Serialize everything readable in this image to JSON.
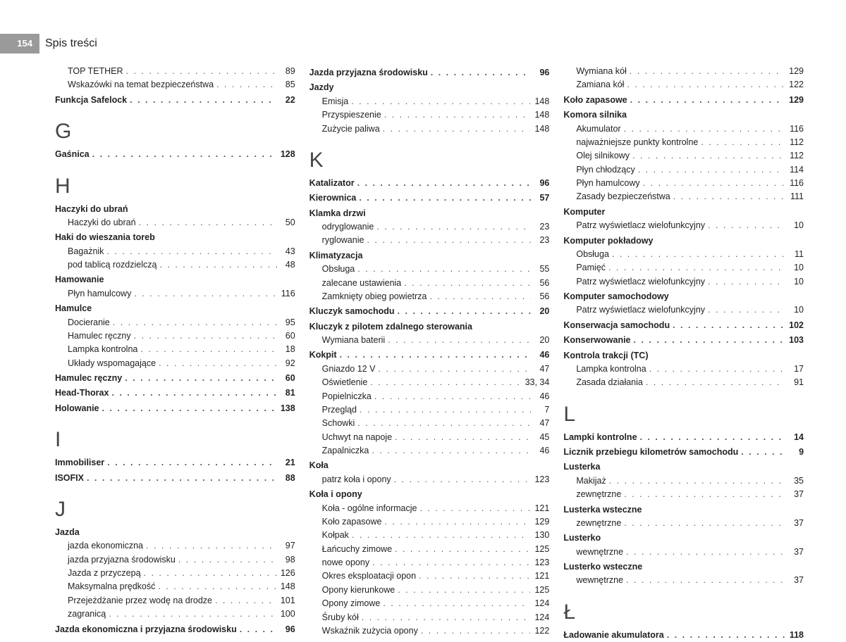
{
  "header": {
    "page_num": "154",
    "title": "Spis treści"
  },
  "col1": [
    {
      "sub": true,
      "label": "TOP TETHER",
      "page": "89"
    },
    {
      "sub": true,
      "label": "Wskazówki na temat bezpieczeństwa",
      "page": "85"
    },
    {
      "bold": true,
      "label": "Funkcja Safelock",
      "page": "22"
    },
    {
      "letter": "G"
    },
    {
      "bold": true,
      "label": "Gaśnica",
      "page": "128"
    },
    {
      "letter": "H"
    },
    {
      "bold": true,
      "nopage": true,
      "label": "Haczyki do ubrań",
      "page": ""
    },
    {
      "sub": true,
      "label": "Haczyki do ubrań",
      "page": "50"
    },
    {
      "bold": true,
      "nopage": true,
      "label": "Haki do wieszania toreb",
      "page": ""
    },
    {
      "sub": true,
      "label": "Bagażnik",
      "page": "43"
    },
    {
      "sub": true,
      "label": "pod tablicą rozdzielczą",
      "page": "48"
    },
    {
      "bold": true,
      "nopage": true,
      "label": "Hamowanie",
      "page": ""
    },
    {
      "sub": true,
      "label": "Płyn hamulcowy",
      "page": "116"
    },
    {
      "bold": true,
      "nopage": true,
      "label": "Hamulce",
      "page": ""
    },
    {
      "sub": true,
      "label": "Docieranie",
      "page": "95"
    },
    {
      "sub": true,
      "label": "Hamulec ręczny",
      "page": "60"
    },
    {
      "sub": true,
      "label": "Lampka kontrolna",
      "page": "18"
    },
    {
      "sub": true,
      "label": "Układy wspomagające",
      "page": "92"
    },
    {
      "bold": true,
      "label": "Hamulec ręczny",
      "page": "60"
    },
    {
      "bold": true,
      "label": "Head-Thorax",
      "page": "81"
    },
    {
      "bold": true,
      "label": "Holowanie",
      "page": "138"
    },
    {
      "letter": "I"
    },
    {
      "bold": true,
      "label": "Immobiliser",
      "page": "21"
    },
    {
      "bold": true,
      "label": "ISOFIX",
      "page": "88"
    },
    {
      "letter": "J"
    },
    {
      "bold": true,
      "nopage": true,
      "label": "Jazda",
      "page": ""
    },
    {
      "sub": true,
      "label": "jazda ekonomiczna",
      "page": "97"
    },
    {
      "sub": true,
      "label": "jazda przyjazna środowisku",
      "page": "98"
    },
    {
      "sub": true,
      "label": "Jazda z przyczepą",
      "page": "126"
    },
    {
      "sub": true,
      "label": "Maksymalna prędkość",
      "page": "148"
    },
    {
      "sub": true,
      "label": "Przejeżdżanie przez wodę na drodze",
      "page": "101"
    },
    {
      "sub": true,
      "label": "zagranicą",
      "page": "100"
    },
    {
      "bold": true,
      "label": "Jazda ekonomiczna i przyjazna środowisku",
      "page": "96"
    }
  ],
  "col2": [
    {
      "bold": true,
      "label": "Jazda przyjazna środowisku",
      "page": "96"
    },
    {
      "bold": true,
      "nopage": true,
      "label": "Jazdy",
      "page": ""
    },
    {
      "sub": true,
      "label": "Emisja",
      "page": "148"
    },
    {
      "sub": true,
      "label": "Przyspieszenie",
      "page": "148"
    },
    {
      "sub": true,
      "label": "Zużycie paliwa",
      "page": "148"
    },
    {
      "letter": "K"
    },
    {
      "bold": true,
      "label": "Katalizator",
      "page": "96"
    },
    {
      "bold": true,
      "label": "Kierownica",
      "page": "57"
    },
    {
      "bold": true,
      "nopage": true,
      "label": "Klamka drzwi",
      "page": ""
    },
    {
      "sub": true,
      "label": "odryglowanie",
      "page": "23"
    },
    {
      "sub": true,
      "label": "ryglowanie",
      "page": "23"
    },
    {
      "bold": true,
      "nopage": true,
      "label": "Klimatyzacja",
      "page": ""
    },
    {
      "sub": true,
      "label": "Obsługa",
      "page": "55"
    },
    {
      "sub": true,
      "label": "zalecane ustawienia",
      "page": "56"
    },
    {
      "sub": true,
      "label": "Zamknięty obieg powietrza",
      "page": "56"
    },
    {
      "bold": true,
      "label": "Kluczyk samochodu",
      "page": "20"
    },
    {
      "bold": true,
      "nopage": true,
      "label": "Kluczyk z pilotem zdalnego sterowania",
      "page": ""
    },
    {
      "sub": true,
      "label": "Wymiana baterii",
      "page": "20"
    },
    {
      "bold": true,
      "label": "Kokpit",
      "page": "46"
    },
    {
      "sub": true,
      "label": "Gniazdo 12 V",
      "page": "47"
    },
    {
      "sub": true,
      "label": "Oświetlenie",
      "page": "33, 34"
    },
    {
      "sub": true,
      "label": "Popielniczka",
      "page": "46"
    },
    {
      "sub": true,
      "label": "Przegląd",
      "page": "7"
    },
    {
      "sub": true,
      "label": "Schowki",
      "page": "47"
    },
    {
      "sub": true,
      "label": "Uchwyt na napoje",
      "page": "45"
    },
    {
      "sub": true,
      "label": "Zapalniczka",
      "page": "46"
    },
    {
      "bold": true,
      "nopage": true,
      "label": "Koła",
      "page": ""
    },
    {
      "sub": true,
      "label": "patrz koła i opony",
      "page": "123"
    },
    {
      "bold": true,
      "nopage": true,
      "label": "Koła i opony",
      "page": ""
    },
    {
      "sub": true,
      "label": "Koła - ogólne informacje",
      "page": "121"
    },
    {
      "sub": true,
      "label": "Koło zapasowe",
      "page": "129"
    },
    {
      "sub": true,
      "label": "Kołpak",
      "page": "130"
    },
    {
      "sub": true,
      "label": "Łańcuchy zimowe",
      "page": "125"
    },
    {
      "sub": true,
      "label": "nowe opony",
      "page": "123"
    },
    {
      "sub": true,
      "label": "Okres eksploatacji opon",
      "page": "121"
    },
    {
      "sub": true,
      "label": "Opony kierunkowe",
      "page": "125"
    },
    {
      "sub": true,
      "label": "Opony zimowe",
      "page": "124"
    },
    {
      "sub": true,
      "label": "Śruby kół",
      "page": "124"
    },
    {
      "sub": true,
      "label": "Wskaźnik zużycia opony",
      "page": "122"
    }
  ],
  "col3": [
    {
      "sub": true,
      "label": "Wymiana kół",
      "page": "129"
    },
    {
      "sub": true,
      "label": "Zamiana kół",
      "page": "122"
    },
    {
      "bold": true,
      "label": "Koło zapasowe",
      "page": "129"
    },
    {
      "bold": true,
      "nopage": true,
      "label": "Komora silnika",
      "page": ""
    },
    {
      "sub": true,
      "label": "Akumulator",
      "page": "116"
    },
    {
      "sub": true,
      "label": "najważniejsze punkty kontrolne",
      "page": "112"
    },
    {
      "sub": true,
      "label": "Olej silnikowy",
      "page": "112"
    },
    {
      "sub": true,
      "label": "Płyn chłodzący",
      "page": "114"
    },
    {
      "sub": true,
      "label": "Płyn hamulcowy",
      "page": "116"
    },
    {
      "sub": true,
      "label": "Zasady bezpieczeństwa",
      "page": "111"
    },
    {
      "bold": true,
      "nopage": true,
      "label": "Komputer",
      "page": ""
    },
    {
      "sub": true,
      "label": "Patrz wyświetlacz wielofunkcyjny",
      "page": "10"
    },
    {
      "bold": true,
      "nopage": true,
      "label": "Komputer pokładowy",
      "page": ""
    },
    {
      "sub": true,
      "label": "Obsługa",
      "page": "11"
    },
    {
      "sub": true,
      "label": "Pamięć",
      "page": "10"
    },
    {
      "sub": true,
      "label": "Patrz wyświetlacz wielofunkcyjny",
      "page": "10"
    },
    {
      "bold": true,
      "nopage": true,
      "label": "Komputer samochodowy",
      "page": ""
    },
    {
      "sub": true,
      "label": "Patrz wyświetlacz wielofunkcyjny",
      "page": "10"
    },
    {
      "bold": true,
      "label": "Konserwacja samochodu",
      "page": "102"
    },
    {
      "bold": true,
      "label": "Konserwowanie",
      "page": "103"
    },
    {
      "bold": true,
      "nopage": true,
      "label": "Kontrola trakcji (TC)",
      "page": ""
    },
    {
      "sub": true,
      "label": "Lampka kontrolna",
      "page": "17"
    },
    {
      "sub": true,
      "label": "Zasada działania",
      "page": "91"
    },
    {
      "letter": "L"
    },
    {
      "bold": true,
      "label": "Lampki kontrolne",
      "page": "14"
    },
    {
      "bold": true,
      "label": "Licznik przebiegu kilometrów samochodu",
      "page": "9"
    },
    {
      "bold": true,
      "nopage": true,
      "label": "Lusterka",
      "page": ""
    },
    {
      "sub": true,
      "label": "Makijaż",
      "page": "35"
    },
    {
      "sub": true,
      "label": "zewnętrzne",
      "page": "37"
    },
    {
      "bold": true,
      "nopage": true,
      "label": "Lusterka wsteczne",
      "page": ""
    },
    {
      "sub": true,
      "label": "zewnętrzne",
      "page": "37"
    },
    {
      "bold": true,
      "nopage": true,
      "label": "Lusterko",
      "page": ""
    },
    {
      "sub": true,
      "label": "wewnętrzne",
      "page": "37"
    },
    {
      "bold": true,
      "nopage": true,
      "label": "Lusterko wsteczne",
      "page": ""
    },
    {
      "sub": true,
      "label": "wewnętrzne",
      "page": "37"
    },
    {
      "letter": "Ł"
    },
    {
      "bold": true,
      "label": "Ładowanie akumulatora",
      "page": "118"
    }
  ]
}
